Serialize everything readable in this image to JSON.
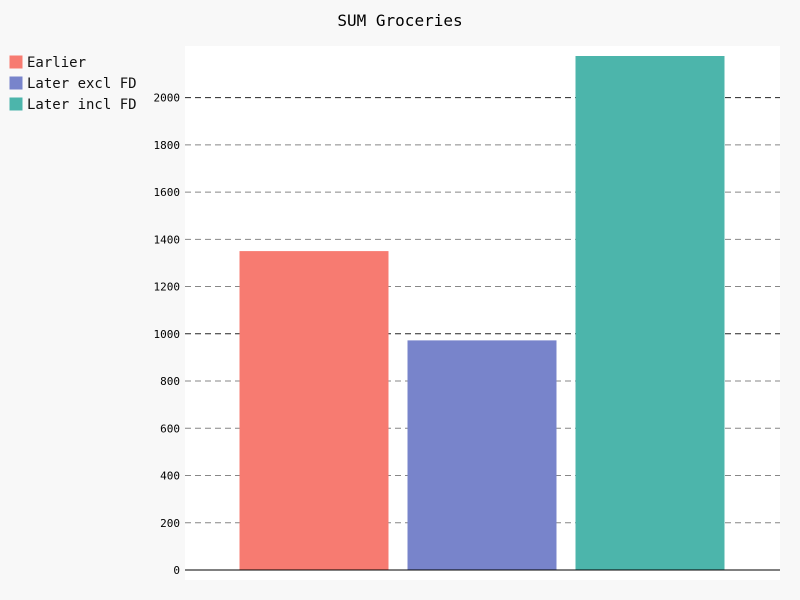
{
  "chart_data": {
    "type": "bar",
    "title": "SUM Groceries",
    "xlabel": "",
    "ylabel": "",
    "ylim": [
      0,
      2220
    ],
    "yticks": [
      0,
      200,
      400,
      600,
      800,
      1000,
      1200,
      1400,
      1600,
      1800,
      2000
    ],
    "grid": true,
    "legend_position": "top-left",
    "series": [
      {
        "name": "Earlier",
        "value": 1348,
        "color": "#f77b71"
      },
      {
        "name": "Later excl FD",
        "value": 970,
        "color": "#7884cb"
      },
      {
        "name": "Later incl FD",
        "value": 2174,
        "color": "#4cb5ab"
      }
    ]
  }
}
